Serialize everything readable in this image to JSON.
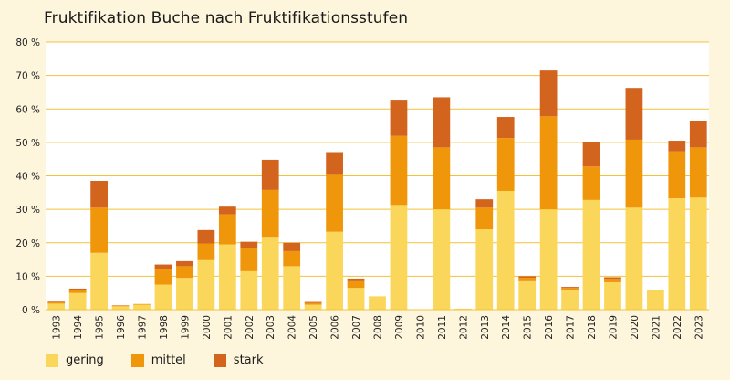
{
  "title": "Fruktifikation Buche nach Fruktifikationsstufen",
  "chart_data": {
    "type": "bar",
    "stacked": true,
    "title": "Fruktifikation Buche nach Fruktifikationsstufen",
    "xlabel": "",
    "ylabel": "",
    "ylim": [
      0,
      80
    ],
    "yticks": [
      "0 %",
      "10 %",
      "20 %",
      "30 %",
      "40 %",
      "50 %",
      "60 %",
      "70 %",
      "80 %"
    ],
    "grid": true,
    "legend_position": "bottom-left",
    "categories": [
      "1993",
      "1994",
      "1995",
      "1996",
      "1997",
      "1998",
      "1999",
      "2000",
      "2001",
      "2002",
      "2003",
      "2004",
      "2005",
      "2006",
      "2007",
      "2008",
      "2009",
      "2010",
      "2011",
      "2012",
      "2013",
      "2014",
      "2015",
      "2016",
      "2017",
      "2018",
      "2019",
      "2020",
      "2021",
      "2022",
      "2023"
    ],
    "series": [
      {
        "name": "gering",
        "color": "#fad75a",
        "values": [
          1.8,
          5.0,
          17.0,
          1.0,
          1.5,
          7.5,
          9.5,
          14.8,
          19.5,
          11.5,
          21.5,
          13.0,
          1.5,
          23.3,
          6.5,
          4.0,
          31.3,
          0.0,
          30.0,
          0.3,
          24.0,
          35.5,
          8.5,
          30.0,
          6.0,
          32.8,
          8.2,
          30.5,
          5.8,
          33.3,
          33.5
        ]
      },
      {
        "name": "mittel",
        "color": "#f0960a",
        "values": [
          0.4,
          1.0,
          13.5,
          0.2,
          0.2,
          4.5,
          3.5,
          5.0,
          9.0,
          7.0,
          14.3,
          4.5,
          0.5,
          17.0,
          2.0,
          0.0,
          20.7,
          0.0,
          18.5,
          0.0,
          6.5,
          15.8,
          1.0,
          27.8,
          0.5,
          10.0,
          1.0,
          20.3,
          0.0,
          14.0,
          15.0
        ]
      },
      {
        "name": "stark",
        "color": "#d2641e",
        "values": [
          0.2,
          0.3,
          8.0,
          0.1,
          0.0,
          1.5,
          1.5,
          4.0,
          2.3,
          1.8,
          9.0,
          2.5,
          0.3,
          6.8,
          0.8,
          0.0,
          10.5,
          0.0,
          15.0,
          0.0,
          2.5,
          6.3,
          0.5,
          13.7,
          0.3,
          7.3,
          0.5,
          15.5,
          0.0,
          3.2,
          8.0
        ]
      }
    ]
  }
}
